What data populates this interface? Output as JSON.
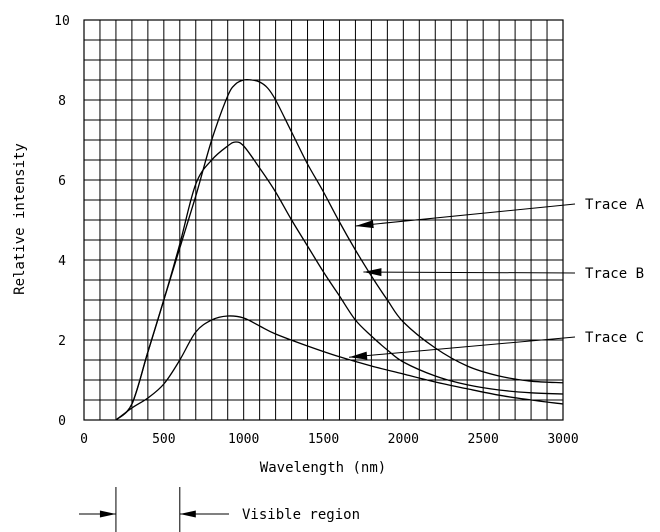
{
  "chart_data": {
    "type": "line",
    "xlabel": "Wavelength (nm)",
    "ylabel": "Relative intensity",
    "xlim": [
      0,
      3000
    ],
    "ylim": [
      0,
      10
    ],
    "x_ticks": [
      "0",
      "500",
      "1000",
      "1500",
      "2000",
      "2500",
      "3000"
    ],
    "y_ticks": [
      "0",
      "2",
      "4",
      "6",
      "8",
      "10"
    ],
    "grid": true,
    "series": [
      {
        "name": "Trace A",
        "x": [
          200,
          300,
          400,
          500,
          600,
          700,
          800,
          900,
          950,
          1000,
          1050,
          1100,
          1150,
          1200,
          1300,
          1400,
          1500,
          1600,
          1700,
          1800,
          1900,
          2000,
          2200,
          2400,
          2600,
          2800,
          3000
        ],
        "y": [
          0,
          0.4,
          1.7,
          3.0,
          4.3,
          5.6,
          7.0,
          8.1,
          8.4,
          8.5,
          8.5,
          8.45,
          8.3,
          8.0,
          7.2,
          6.4,
          5.7,
          4.95,
          4.25,
          3.6,
          3.0,
          2.45,
          1.8,
          1.35,
          1.1,
          0.97,
          0.93
        ]
      },
      {
        "name": "Trace B",
        "x": [
          200,
          300,
          400,
          500,
          600,
          700,
          800,
          900,
          950,
          1000,
          1100,
          1200,
          1300,
          1400,
          1500,
          1600,
          1700,
          1800,
          1900,
          2000,
          2200,
          2400,
          2600,
          2800,
          3000
        ],
        "y": [
          0,
          0.4,
          1.7,
          3.0,
          4.4,
          5.9,
          6.5,
          6.85,
          6.95,
          6.85,
          6.3,
          5.7,
          5.0,
          4.35,
          3.7,
          3.1,
          2.5,
          2.1,
          1.75,
          1.45,
          1.1,
          0.88,
          0.75,
          0.68,
          0.65
        ]
      },
      {
        "name": "Trace C",
        "x": [
          200,
          300,
          400,
          500,
          600,
          700,
          800,
          900,
          1000,
          1100,
          1200,
          1400,
          1600,
          1800,
          2000,
          2200,
          2400,
          2600,
          2800,
          3000
        ],
        "y": [
          0,
          0.3,
          0.55,
          0.9,
          1.5,
          2.2,
          2.5,
          2.6,
          2.55,
          2.35,
          2.15,
          1.85,
          1.58,
          1.35,
          1.15,
          0.95,
          0.78,
          0.62,
          0.5,
          0.4
        ]
      }
    ],
    "annotations": [
      {
        "text": "Trace A",
        "series": "Trace A",
        "arrow_to_x": 1700,
        "arrow_to_y": 4.85
      },
      {
        "text": "Trace B",
        "series": "Trace B",
        "arrow_to_x": 1750,
        "arrow_to_y": 3.7
      },
      {
        "text": "Trace C",
        "series": "Trace C",
        "arrow_to_x": 1660,
        "arrow_to_y": 1.57
      }
    ],
    "visible_region": {
      "label": "Visible region",
      "x_start": 200,
      "x_end": 600
    }
  }
}
